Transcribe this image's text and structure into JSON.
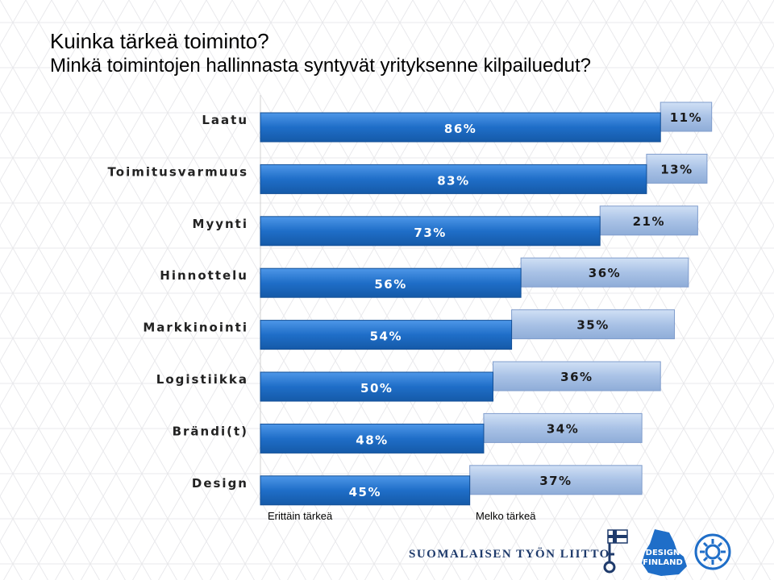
{
  "header": {
    "title": "Kuinka tärkeä toiminto?",
    "subtitle": "Minkä toimintojen hallinnasta syntyvät yrityksenne kilpailuedut?"
  },
  "chart_data": {
    "type": "bar",
    "orientation": "horizontal",
    "stacked": true,
    "categories": [
      "Laatu",
      "Toimitusvarmuus",
      "Myynti",
      "Hinnottelu",
      "Markkinointi",
      "Logistiikka",
      "Brändi(t)",
      "Design"
    ],
    "series": [
      {
        "name": "Erittäin tärkeä",
        "values": [
          86,
          83,
          73,
          56,
          54,
          50,
          48,
          45
        ],
        "labels": [
          "86%",
          "83%",
          "73%",
          "56%",
          "54%",
          "50%",
          "48%",
          "45%"
        ],
        "color": "#1f6ec8"
      },
      {
        "name": "Melko tärkeä",
        "values": [
          11,
          13,
          21,
          36,
          35,
          36,
          34,
          37
        ],
        "labels": [
          "11%",
          "13%",
          "21%",
          "36%",
          "35%",
          "36%",
          "34%",
          "37%"
        ],
        "color": "#a9c2e6"
      }
    ],
    "xlim": [
      0,
      100
    ],
    "legend_position": "bottom",
    "grid": false
  },
  "legend": {
    "very_important": "Erittäin tärkeä",
    "fairly_important": "Melko tärkeä"
  },
  "footer": {
    "organization": "SUOMALAISEN TYÖN LIITTO",
    "design_logo_line1": "DESIGN",
    "design_logo_line2": "FINLAND"
  },
  "colors": {
    "dark_bar": "#1f6ec8",
    "light_bar": "#a9c2e6",
    "org_text": "#1e3a6b"
  }
}
